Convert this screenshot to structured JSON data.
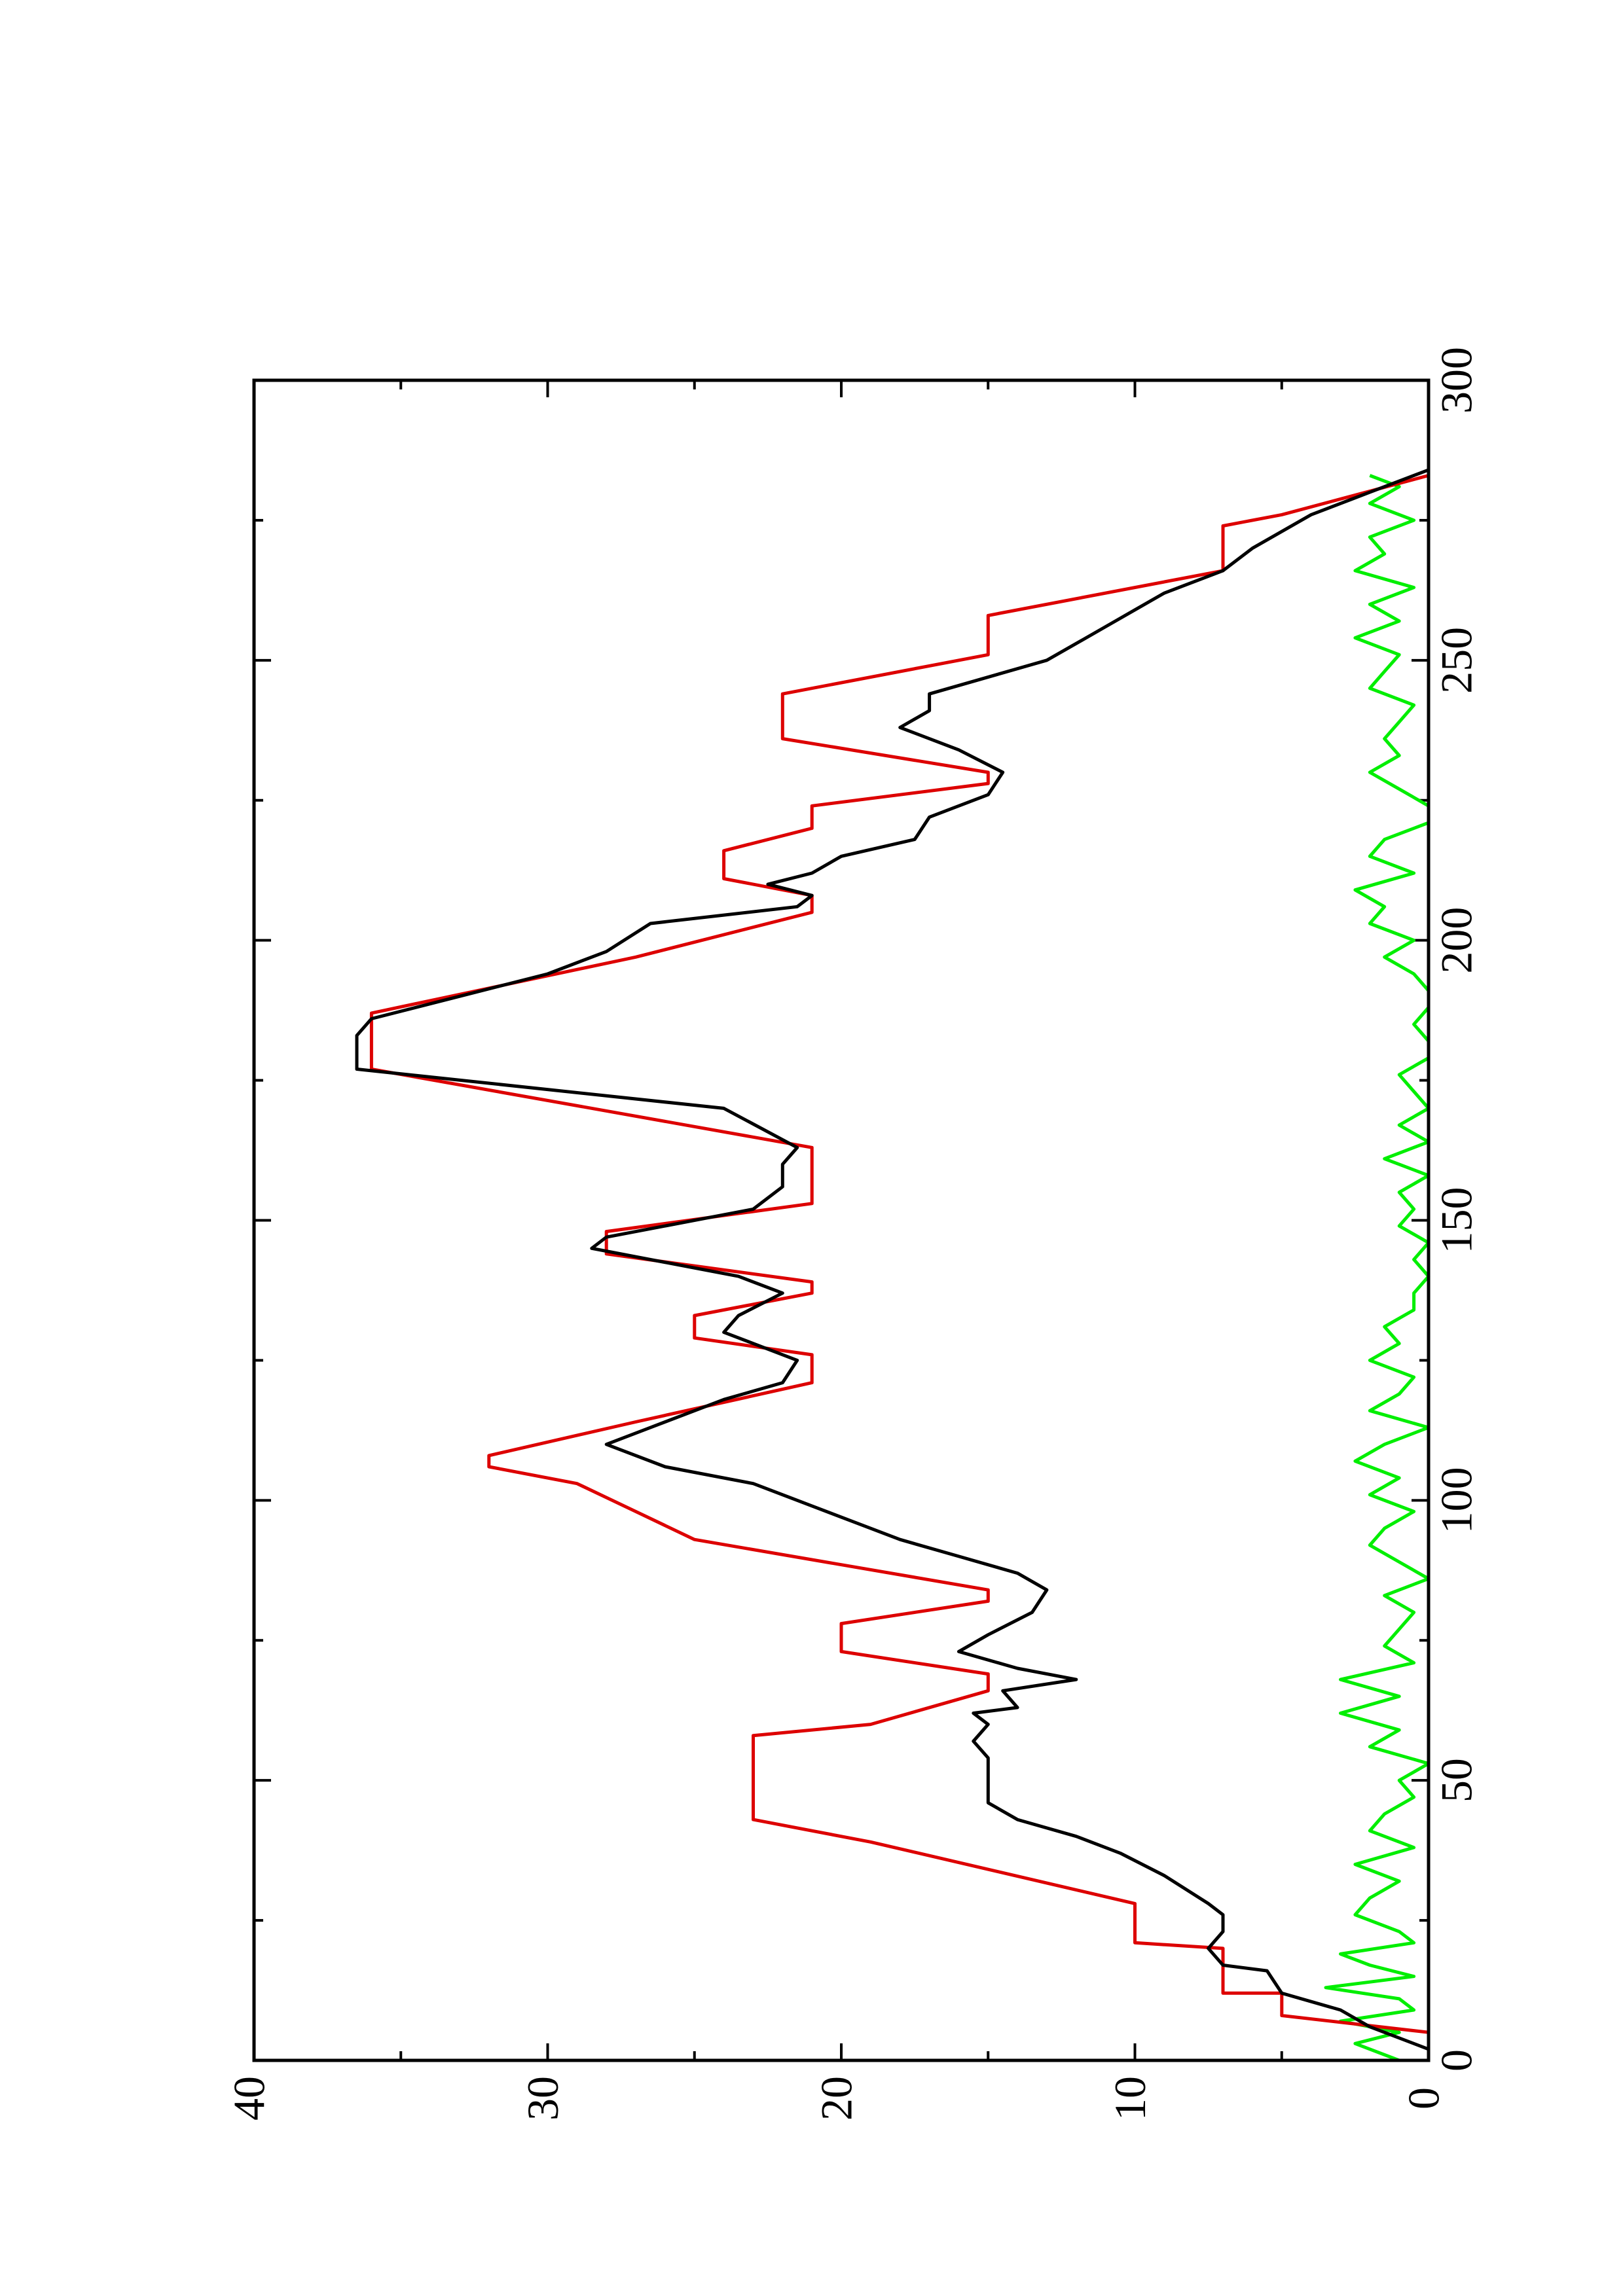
{
  "chart_data": {
    "type": "line",
    "xlim": [
      0,
      300
    ],
    "xticks": [
      0,
      50,
      100,
      150,
      200,
      250,
      300
    ],
    "xminorticks": [
      25,
      75,
      125,
      175,
      225,
      275
    ],
    "ylim": [
      0,
      40
    ],
    "yticks": [
      0,
      10,
      20,
      30,
      40
    ],
    "yminorticks": [
      5,
      15,
      25,
      35
    ],
    "rotated": true,
    "series": [
      {
        "color": "#dd0000",
        "x": [
          5,
          8,
          12,
          12,
          20,
          21,
          28,
          39,
          43,
          58,
          60,
          66,
          69,
          73,
          78,
          82,
          84,
          93,
          98,
          103,
          106,
          108,
          114,
          121,
          126,
          129,
          133,
          137,
          139,
          144,
          148,
          153,
          163,
          177,
          187,
          197,
          205,
          208,
          211,
          216,
          220,
          224,
          228,
          230,
          236,
          244,
          251,
          258,
          266,
          274,
          276,
          283
        ],
        "values": [
          0,
          5,
          5,
          7,
          7,
          10,
          10,
          19,
          23,
          23,
          19,
          15,
          15,
          20,
          20,
          15,
          15,
          25,
          27,
          29,
          32,
          32,
          27,
          21,
          21,
          25,
          25,
          21,
          21,
          28,
          28,
          21,
          21,
          36,
          36,
          27,
          21,
          21,
          24,
          24,
          21,
          21,
          15,
          15,
          22,
          22,
          15,
          15,
          7,
          7,
          5,
          0
        ]
      },
      {
        "color": "#000000",
        "x": [
          2,
          6,
          9,
          12,
          16,
          17,
          20,
          23,
          26,
          28,
          33,
          37,
          40,
          43,
          46,
          50,
          54,
          57,
          60,
          62,
          63,
          66,
          68,
          70,
          73,
          76,
          80,
          84,
          87,
          90,
          93,
          96,
          99,
          103,
          106,
          110,
          113,
          114,
          118,
          121,
          125,
          128,
          130,
          133,
          137,
          140,
          145,
          147,
          152,
          156,
          160,
          163,
          170,
          177,
          183,
          186,
          194,
          198,
          203,
          206,
          208,
          210,
          212,
          215,
          218,
          222,
          226,
          230,
          234,
          238,
          241,
          244,
          250,
          253,
          256,
          259,
          262,
          266,
          270,
          276,
          280,
          284
        ],
        "values": [
          0,
          2,
          3,
          5,
          5.5,
          7,
          7.5,
          7,
          7,
          7.5,
          9,
          10.5,
          12,
          14,
          15,
          15,
          15,
          15.5,
          15,
          15.5,
          14,
          14.5,
          12,
          14,
          16,
          15,
          13.5,
          13,
          14,
          16,
          18,
          19.5,
          21,
          23,
          26,
          28,
          26.5,
          26,
          24,
          22,
          21.5,
          23,
          24,
          23.5,
          22,
          23.5,
          28.5,
          28,
          23,
          22,
          22,
          21.5,
          24,
          36.5,
          36.5,
          36,
          30,
          28,
          26.5,
          21.5,
          21,
          22.5,
          21,
          20,
          17.5,
          17,
          15,
          14.5,
          16,
          18,
          17,
          17,
          13,
          12,
          11,
          10,
          9,
          7,
          6,
          4,
          2,
          0
        ]
      },
      {
        "color": "#00ee00",
        "x": [
          0,
          3,
          5,
          7,
          9,
          11,
          13,
          15,
          17,
          19,
          21,
          23,
          26,
          29,
          32,
          35,
          38,
          41,
          44,
          47,
          50,
          53,
          56,
          59,
          62,
          65,
          68,
          71,
          74,
          77,
          80,
          83,
          86,
          89,
          92,
          95,
          98,
          101,
          104,
          107,
          110,
          113,
          116,
          119,
          122,
          125,
          128,
          131,
          134,
          137,
          140,
          143,
          146,
          149,
          152,
          155,
          158,
          161,
          164,
          167,
          170,
          173,
          176,
          179,
          182,
          185,
          188,
          191,
          194,
          197,
          200,
          203,
          206,
          209,
          212,
          215,
          218,
          221,
          224,
          227,
          230,
          233,
          236,
          239,
          242,
          245,
          248,
          251,
          254,
          257,
          260,
          263,
          266,
          269,
          272,
          275,
          278,
          281,
          283
        ],
        "values": [
          1,
          2.5,
          1,
          3,
          0.5,
          1,
          3.5,
          0.5,
          2,
          3,
          0.5,
          1,
          2.5,
          2,
          1,
          2.5,
          0.5,
          2,
          1.5,
          0.5,
          1,
          0,
          2,
          1,
          3,
          1,
          3,
          0.5,
          1.5,
          1,
          0.5,
          1.5,
          0,
          1,
          2,
          1.5,
          0.5,
          2,
          1,
          2.5,
          1.5,
          0,
          2,
          1,
          0.5,
          2,
          1,
          1.5,
          0.5,
          0.5,
          0,
          0.5,
          0,
          1,
          0.5,
          1,
          0,
          1.5,
          0,
          1,
          0,
          0.5,
          1,
          0,
          0,
          0.5,
          0,
          0,
          0.5,
          1.5,
          0.5,
          2,
          1.5,
          2.5,
          0.5,
          2,
          1.5,
          0,
          0,
          1,
          2,
          1,
          1.5,
          1,
          0.5,
          2,
          1.5,
          1,
          2.5,
          1,
          2,
          0.5,
          2.5,
          1.5,
          2,
          0.5,
          2,
          1,
          2
        ]
      }
    ]
  }
}
